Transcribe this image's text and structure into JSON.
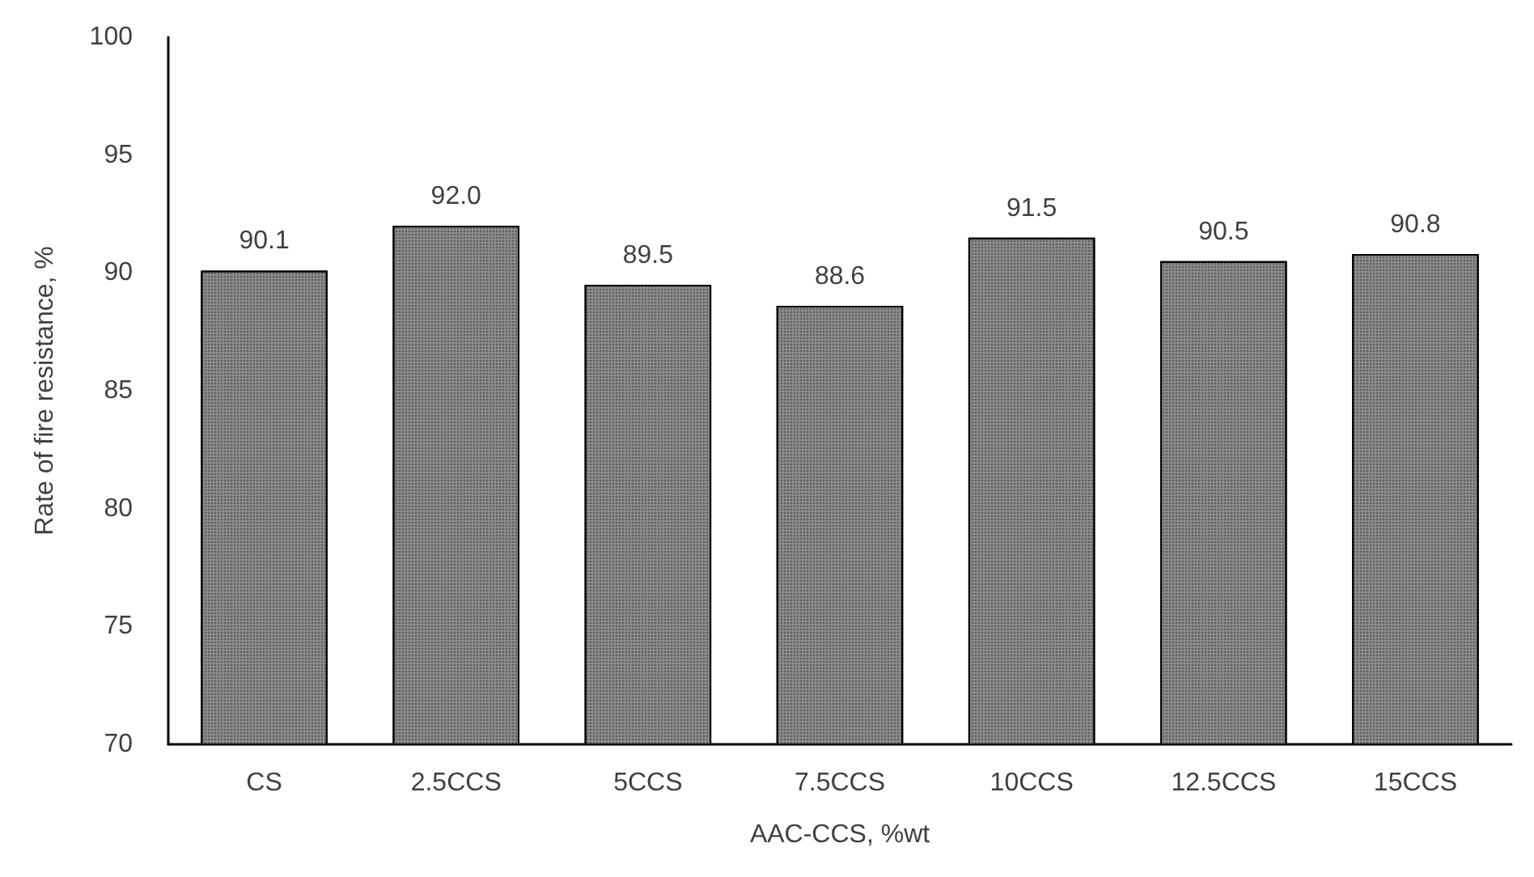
{
  "chart_data": {
    "type": "bar",
    "xlabel": "AAC-CCS, %wt",
    "ylabel": "Rate of fire resistance, %",
    "categories": [
      "CS",
      "2.5CCS",
      "5CCS",
      "7.5CCS",
      "10CCS",
      "12.5CCS",
      "15CCS"
    ],
    "values": [
      90.1,
      92.0,
      89.5,
      88.6,
      91.5,
      90.5,
      90.8
    ],
    "color": "#8a8a8a",
    "value_labels": [
      "90.1",
      "92.0",
      "89.5",
      "88.6",
      "91.5",
      "90.5",
      "90.8"
    ],
    "ylim": [
      70,
      100
    ],
    "yticks": [
      70,
      75,
      80,
      85,
      90,
      95,
      100
    ],
    "grid": false
  }
}
